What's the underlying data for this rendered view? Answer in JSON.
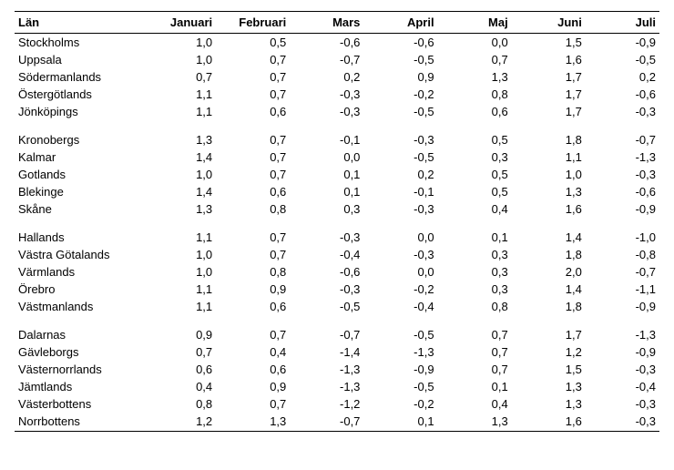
{
  "table": {
    "columns": [
      "Län",
      "Januari",
      "Februari",
      "Mars",
      "April",
      "Maj",
      "Juni",
      "Juli"
    ],
    "groups": [
      [
        {
          "lan": "Stockholms",
          "v": [
            "1,0",
            "0,5",
            "-0,6",
            "-0,6",
            "0,0",
            "1,5",
            "-0,9"
          ]
        },
        {
          "lan": "Uppsala",
          "v": [
            "1,0",
            "0,7",
            "-0,7",
            "-0,5",
            "0,7",
            "1,6",
            "-0,5"
          ]
        },
        {
          "lan": "Södermanlands",
          "v": [
            "0,7",
            "0,7",
            "0,2",
            "0,9",
            "1,3",
            "1,7",
            "0,2"
          ]
        },
        {
          "lan": "Östergötlands",
          "v": [
            "1,1",
            "0,7",
            "-0,3",
            "-0,2",
            "0,8",
            "1,7",
            "-0,6"
          ]
        },
        {
          "lan": "Jönköpings",
          "v": [
            "1,1",
            "0,6",
            "-0,3",
            "-0,5",
            "0,6",
            "1,7",
            "-0,3"
          ]
        }
      ],
      [
        {
          "lan": "Kronobergs",
          "v": [
            "1,3",
            "0,7",
            "-0,1",
            "-0,3",
            "0,5",
            "1,8",
            "-0,7"
          ]
        },
        {
          "lan": "Kalmar",
          "v": [
            "1,4",
            "0,7",
            "0,0",
            "-0,5",
            "0,3",
            "1,1",
            "-1,3"
          ]
        },
        {
          "lan": "Gotlands",
          "v": [
            "1,0",
            "0,7",
            "0,1",
            "0,2",
            "0,5",
            "1,0",
            "-0,3"
          ]
        },
        {
          "lan": "Blekinge",
          "v": [
            "1,4",
            "0,6",
            "0,1",
            "-0,1",
            "0,5",
            "1,3",
            "-0,6"
          ]
        },
        {
          "lan": "Skåne",
          "v": [
            "1,3",
            "0,8",
            "0,3",
            "-0,3",
            "0,4",
            "1,6",
            "-0,9"
          ]
        }
      ],
      [
        {
          "lan": "Hallands",
          "v": [
            "1,1",
            "0,7",
            "-0,3",
            "0,0",
            "0,1",
            "1,4",
            "-1,0"
          ]
        },
        {
          "lan": "Västra Götalands",
          "v": [
            "1,0",
            "0,7",
            "-0,4",
            "-0,3",
            "0,3",
            "1,8",
            "-0,8"
          ]
        },
        {
          "lan": "Värmlands",
          "v": [
            "1,0",
            "0,8",
            "-0,6",
            "0,0",
            "0,3",
            "2,0",
            "-0,7"
          ]
        },
        {
          "lan": "Örebro",
          "v": [
            "1,1",
            "0,9",
            "-0,3",
            "-0,2",
            "0,3",
            "1,4",
            "-1,1"
          ]
        },
        {
          "lan": "Västmanlands",
          "v": [
            "1,1",
            "0,6",
            "-0,5",
            "-0,4",
            "0,8",
            "1,8",
            "-0,9"
          ]
        }
      ],
      [
        {
          "lan": "Dalarnas",
          "v": [
            "0,9",
            "0,7",
            "-0,7",
            "-0,5",
            "0,7",
            "1,7",
            "-1,3"
          ]
        },
        {
          "lan": "Gävleborgs",
          "v": [
            "0,7",
            "0,4",
            "-1,4",
            "-1,3",
            "0,7",
            "1,2",
            "-0,9"
          ]
        },
        {
          "lan": "Västernorrlands",
          "v": [
            "0,6",
            "0,6",
            "-1,3",
            "-0,9",
            "0,7",
            "1,5",
            "-0,3"
          ]
        },
        {
          "lan": "Jämtlands",
          "v": [
            "0,4",
            "0,9",
            "-1,3",
            "-0,5",
            "0,1",
            "1,3",
            "-0,4"
          ]
        },
        {
          "lan": "Västerbottens",
          "v": [
            "0,8",
            "0,7",
            "-1,2",
            "-0,2",
            "0,4",
            "1,3",
            "-0,3"
          ]
        },
        {
          "lan": "Norrbottens",
          "v": [
            "1,2",
            "1,3",
            "-0,7",
            "0,1",
            "1,3",
            "1,6",
            "-0,3"
          ]
        }
      ]
    ]
  }
}
